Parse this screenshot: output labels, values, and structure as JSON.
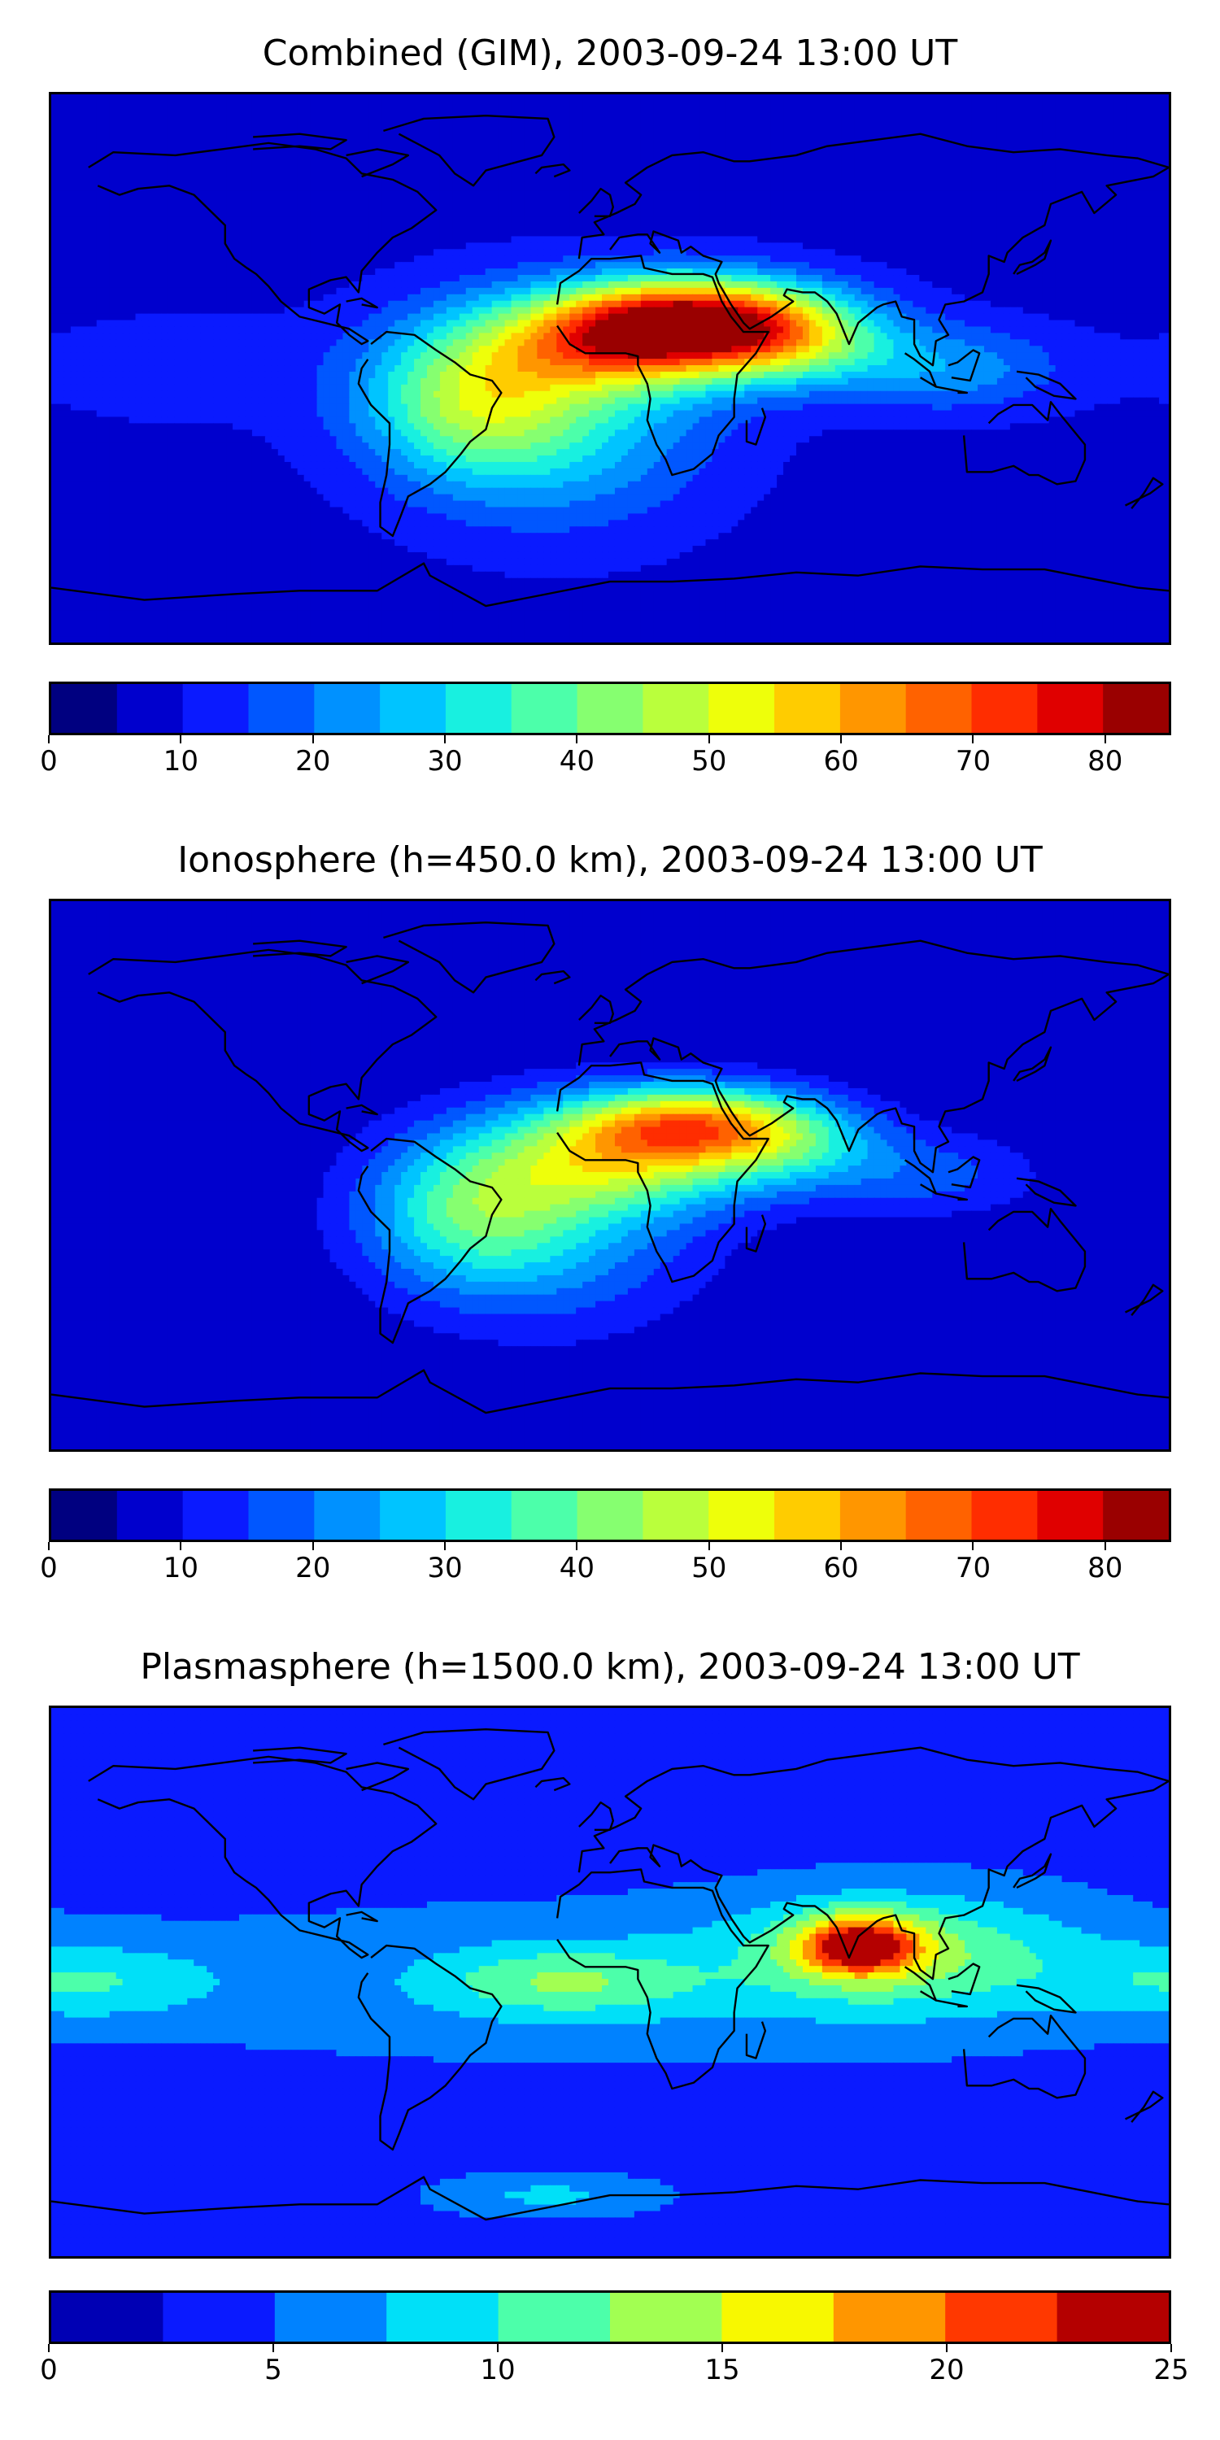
{
  "chart_data": [
    {
      "type": "heatmap",
      "title": "Combined (GIM), 2003-09-24 13:00 UT",
      "colorbar": {
        "min": 0,
        "max": 85,
        "step": 5,
        "ticks": [
          0,
          10,
          20,
          30,
          40,
          50,
          60,
          70,
          80
        ],
        "colors": [
          "#000080",
          "#0000cd",
          "#0a1aff",
          "#0057ff",
          "#0091ff",
          "#00c4ff",
          "#18f0e0",
          "#4cffaa",
          "#86ff70",
          "#baff3c",
          "#eeff0a",
          "#ffcc00",
          "#ff9600",
          "#ff6200",
          "#ff2d00",
          "#e00000",
          "#9a0000"
        ]
      },
      "maxima": [
        {
          "lon": 30,
          "lat": 18,
          "value": 82,
          "note": "maximum over north-east Africa / Red Sea"
        },
        {
          "lon": 10,
          "lat": 8,
          "value": 72,
          "note": "West/Central Africa"
        },
        {
          "lon": -45,
          "lat": -10,
          "value": 55,
          "note": "South America"
        }
      ],
      "background_value": 8
    },
    {
      "type": "heatmap",
      "title": "Ionosphere  (h=450.0 km), 2003-09-24 13:00 UT",
      "colorbar": {
        "min": 0,
        "max": 85,
        "step": 5,
        "ticks": [
          0,
          10,
          20,
          30,
          40,
          50,
          60,
          70,
          80
        ],
        "colors": [
          "#000080",
          "#0000cd",
          "#0a1aff",
          "#0057ff",
          "#0091ff",
          "#00c4ff",
          "#18f0e0",
          "#4cffaa",
          "#86ff70",
          "#baff3c",
          "#eeff0a",
          "#ffcc00",
          "#ff9600",
          "#ff6200",
          "#ff2d00",
          "#e00000",
          "#9a0000"
        ]
      },
      "maxima": [
        {
          "lon": 28,
          "lat": 18,
          "value": 70,
          "note": "maximum over north-east Africa"
        },
        {
          "lon": 5,
          "lat": 5,
          "value": 56,
          "note": "West/Central Africa"
        },
        {
          "lon": -45,
          "lat": -12,
          "value": 45,
          "note": "South America"
        }
      ],
      "background_value": 5
    },
    {
      "type": "heatmap",
      "title": "Plasmasphere (h=1500.0 km), 2003-09-24 13:00 UT",
      "colorbar": {
        "min": 0,
        "max": 25,
        "step": 2.5,
        "ticks": [
          0,
          5,
          10,
          15,
          20,
          25
        ],
        "colors": [
          "#0000b4",
          "#0a1aff",
          "#0082ff",
          "#00e0f8",
          "#4cffaa",
          "#a2ff52",
          "#f8f800",
          "#ff9600",
          "#ff3800",
          "#b40000"
        ]
      },
      "maxima": [
        {
          "lon": 80,
          "lat": 12,
          "value": 21,
          "note": "maximum over India / Bay of Bengal"
        },
        {
          "lon": -15,
          "lat": 0,
          "value": 13,
          "note": "equatorial Atlantic"
        },
        {
          "lon": -170,
          "lat": 0,
          "value": 10,
          "note": "central Pacific"
        }
      ],
      "background_value": 4
    }
  ]
}
